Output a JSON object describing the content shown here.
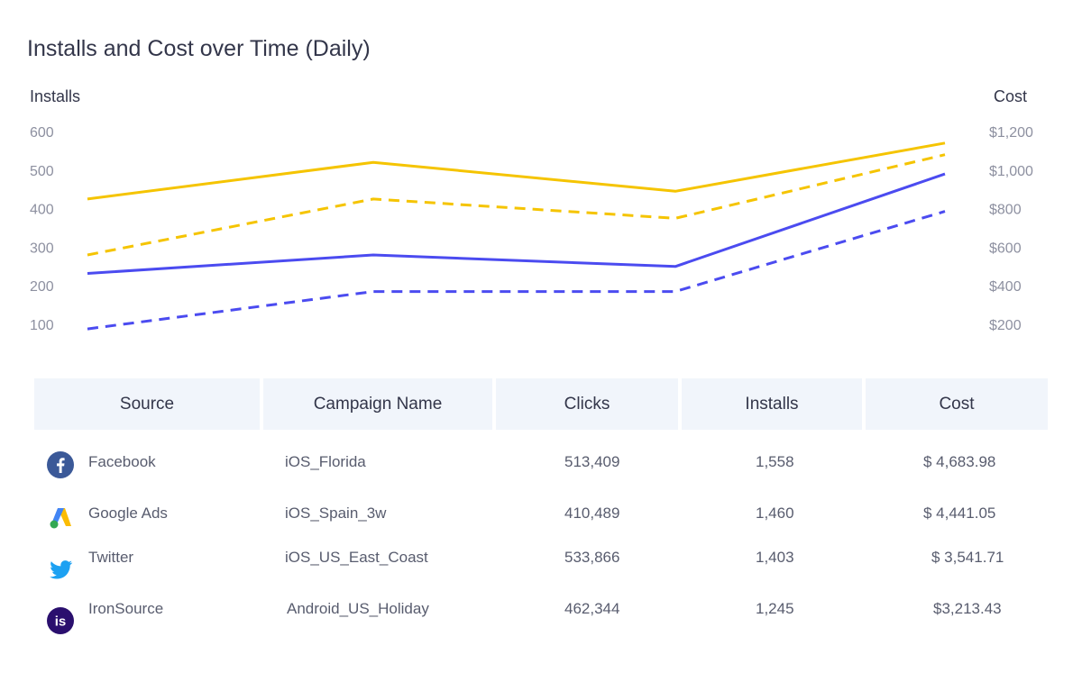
{
  "title": "Installs and Cost over Time (Daily)",
  "axes": {
    "left_label": "Installs",
    "right_label": "Cost"
  },
  "colors": {
    "installs": "#4b4bf0",
    "cost": "#f5c400",
    "header_bg": "#f1f5fb",
    "facebook": "#3b5998",
    "twitter": "#1da1f2",
    "ironsource": "#2a0f6e"
  },
  "chart_data": {
    "type": "line",
    "title": "Installs and Cost over Time (Daily)",
    "ylabel_left": "Installs",
    "ylabel_right": "Cost",
    "ylim_left": [
      100,
      600
    ],
    "ylim_right": [
      200,
      1200
    ],
    "left_ticks": [
      "600",
      "500",
      "400",
      "300",
      "200",
      "100"
    ],
    "right_ticks": [
      "$1,200",
      "$1,000",
      "$800",
      "$600",
      "$400",
      "$200"
    ],
    "x": [
      1,
      2,
      3,
      4
    ],
    "series": [
      {
        "color": "#f5c400",
        "style": "solid",
        "axis": "left",
        "values": [
          425,
          520,
          445,
          570
        ]
      },
      {
        "color": "#f5c400",
        "style": "dashed",
        "axis": "left",
        "values": [
          280,
          425,
          375,
          540
        ]
      },
      {
        "color": "#4b4bf0",
        "style": "solid",
        "axis": "left",
        "values": [
          232,
          280,
          250,
          490
        ]
      },
      {
        "color": "#4b4bf0",
        "style": "dashed",
        "axis": "left",
        "values": [
          88,
          185,
          185,
          393
        ]
      }
    ]
  },
  "table": {
    "headers": [
      "Source",
      "Campaign Name",
      "Clicks",
      "Installs",
      "Cost"
    ],
    "rows": [
      {
        "icon": "facebook-icon",
        "source": "Facebook",
        "campaign": "iOS_Florida",
        "clicks": "513,409",
        "installs": "1,558",
        "cost": "$ 4,683.98"
      },
      {
        "icon": "google-ads-icon",
        "source": "Google Ads",
        "campaign": "iOS_Spain_3w",
        "clicks": "410,489",
        "installs": "1,460",
        "cost": "$ 4,441.05"
      },
      {
        "icon": "twitter-icon",
        "source": "Twitter",
        "campaign": "iOS_US_East_Coast",
        "clicks": "533,866",
        "installs": "1,403",
        "cost": "$ 3,541.71"
      },
      {
        "icon": "ironsource-icon",
        "source": "IronSource",
        "campaign": "Android_US_Holiday",
        "clicks": "462,344",
        "installs": "1,245",
        "cost": "$3,213.43"
      }
    ]
  }
}
